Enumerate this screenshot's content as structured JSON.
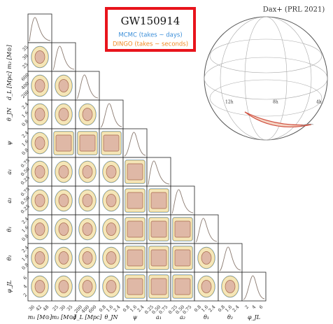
{
  "header": {
    "title": "GW150914",
    "mcmc": "MCMC (takes ~ days)",
    "dingo": "DINGO (takes ~ seconds)",
    "credit": "Dax+ (PRL 2021)"
  },
  "params": [
    {
      "label": "m₁ [M⊙]",
      "ticks": [
        "36",
        "42",
        "48"
      ]
    },
    {
      "label": "m₂ [M⊙]",
      "ticks": [
        "25",
        "30",
        "35"
      ]
    },
    {
      "label": "d_L [Mpc]",
      "ticks": [
        "200",
        "400",
        "600"
      ]
    },
    {
      "label": "θ_JN",
      "ticks": [
        "0.8",
        "1.6",
        "2.4"
      ]
    },
    {
      "label": "ψ",
      "ticks": [
        "0.8",
        "1.6",
        "2.4"
      ]
    },
    {
      "label": "a₁",
      "ticks": [
        "0.25",
        "0.50",
        "0.75"
      ]
    },
    {
      "label": "a₂",
      "ticks": [
        "0.25",
        "0.50",
        "0.75"
      ]
    },
    {
      "label": "θ₁",
      "ticks": [
        "0.8",
        "1.6",
        "2.4"
      ]
    },
    {
      "label": "θ₂",
      "ticks": [
        "0.8",
        "1.6",
        "2.4"
      ]
    },
    {
      "label": "φ_JL",
      "ticks": [
        "2",
        "4",
        "6"
      ]
    }
  ],
  "skymap": {
    "ra_labels": [
      "12h",
      "8h",
      "4h"
    ]
  }
}
